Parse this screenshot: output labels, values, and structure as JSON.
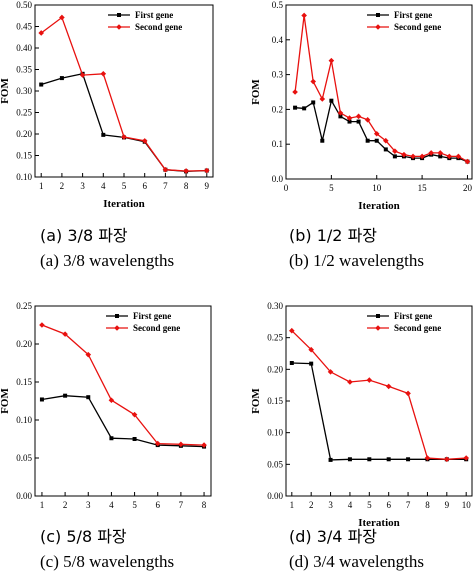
{
  "colors": {
    "series1": "#000000",
    "series2": "#e8110f"
  },
  "chart_data": [
    {
      "type": "line",
      "xlabel": "Iteration",
      "ylabel": "FOM",
      "xlim": [
        0.7,
        9.3
      ],
      "ylim": [
        0.1,
        0.5
      ],
      "xticks": [
        1,
        2,
        3,
        4,
        5,
        6,
        7,
        8,
        9
      ],
      "yticks": [
        0.1,
        0.15,
        0.2,
        0.25,
        0.3,
        0.35,
        0.4,
        0.45,
        0.5
      ],
      "ytick_labels": [
        "0.10",
        "0.15",
        "0.20",
        "0.25",
        "0.30",
        "0.35",
        "0.40",
        "0.45",
        "0.50"
      ],
      "legend_position": "top-right",
      "series": [
        {
          "name": "First gene",
          "x": [
            1,
            2,
            3,
            4,
            5,
            6,
            7,
            8,
            9
          ],
          "values": [
            0.315,
            0.33,
            0.34,
            0.198,
            0.192,
            0.182,
            0.117,
            0.113,
            0.115
          ]
        },
        {
          "name": "Second gene",
          "x": [
            1,
            2,
            3,
            4,
            5,
            6,
            7,
            8,
            9
          ],
          "values": [
            0.435,
            0.471,
            0.337,
            0.34,
            0.193,
            0.184,
            0.117,
            0.114,
            0.115
          ]
        }
      ],
      "caption_line1": "(a)  3/8  파장",
      "caption_line2": "(a)  3/8  wavelengths"
    },
    {
      "type": "line",
      "xlabel": "Iteration",
      "ylabel": "FOM",
      "xlim": [
        0,
        20.5
      ],
      "ylim": [
        0.0,
        0.5
      ],
      "xticks": [
        0,
        5,
        10,
        15,
        20
      ],
      "yticks": [
        0.0,
        0.1,
        0.2,
        0.3,
        0.4,
        0.5
      ],
      "ytick_labels": [
        "0.0",
        "0.1",
        "0.2",
        "0.3",
        "0.4",
        "0.5"
      ],
      "legend_position": "top-right",
      "series": [
        {
          "name": "First gene",
          "x": [
            1,
            2,
            3,
            4,
            5,
            6,
            7,
            8,
            9,
            10,
            11,
            12,
            13,
            14,
            15,
            16,
            17,
            18,
            19,
            20
          ],
          "values": [
            0.205,
            0.203,
            0.22,
            0.11,
            0.225,
            0.18,
            0.165,
            0.165,
            0.11,
            0.11,
            0.085,
            0.065,
            0.065,
            0.06,
            0.06,
            0.07,
            0.065,
            0.06,
            0.06,
            0.05
          ]
        },
        {
          "name": "Second gene",
          "x": [
            1,
            2,
            3,
            4,
            5,
            6,
            7,
            8,
            9,
            10,
            11,
            12,
            13,
            14,
            15,
            16,
            17,
            18,
            19,
            20
          ],
          "values": [
            0.25,
            0.47,
            0.28,
            0.23,
            0.34,
            0.19,
            0.175,
            0.18,
            0.17,
            0.13,
            0.11,
            0.08,
            0.07,
            0.065,
            0.065,
            0.075,
            0.075,
            0.065,
            0.065,
            0.05
          ]
        }
      ],
      "caption_line1": "(b)  1/2  파장",
      "caption_line2": "(b)  1/2  wavelengths"
    },
    {
      "type": "line",
      "xlabel": "",
      "ylabel": "FOM",
      "xlim": [
        0.7,
        8.3
      ],
      "ylim": [
        0.0,
        0.25
      ],
      "xticks": [
        1,
        2,
        3,
        4,
        5,
        6,
        7,
        8
      ],
      "yticks": [
        0.0,
        0.05,
        0.1,
        0.15,
        0.2,
        0.25
      ],
      "ytick_labels": [
        "0.00",
        "0.05",
        "0.10",
        "0.15",
        "0.20",
        "0.25"
      ],
      "legend_position": "top-right",
      "series": [
        {
          "name": "First gene",
          "x": [
            1,
            2,
            3,
            4,
            5,
            6,
            7,
            8
          ],
          "values": [
            0.127,
            0.132,
            0.13,
            0.076,
            0.075,
            0.067,
            0.066,
            0.065
          ]
        },
        {
          "name": "Second gene",
          "x": [
            1,
            2,
            3,
            4,
            5,
            6,
            7,
            8
          ],
          "values": [
            0.225,
            0.213,
            0.186,
            0.126,
            0.107,
            0.069,
            0.068,
            0.067
          ]
        }
      ],
      "caption_line1": "(c)  5/8  파장",
      "caption_line2": "(c)  5/8  wavelengths"
    },
    {
      "type": "line",
      "xlabel": "Iteration",
      "ylabel": "FOM",
      "xlim": [
        0.7,
        10.3
      ],
      "ylim": [
        0.0,
        0.3
      ],
      "xticks": [
        1,
        2,
        3,
        4,
        5,
        6,
        7,
        8,
        9,
        10
      ],
      "yticks": [
        0.0,
        0.05,
        0.1,
        0.15,
        0.2,
        0.25,
        0.3
      ],
      "ytick_labels": [
        "0.00",
        "0.05",
        "0.10",
        "0.15",
        "0.20",
        "0.25",
        "0.30"
      ],
      "legend_position": "top-right",
      "series": [
        {
          "name": "First gene",
          "x": [
            1,
            2,
            3,
            4,
            5,
            6,
            7,
            8,
            9,
            10
          ],
          "values": [
            0.21,
            0.209,
            0.057,
            0.058,
            0.058,
            0.058,
            0.058,
            0.058,
            0.058,
            0.058
          ]
        },
        {
          "name": "Second gene",
          "x": [
            1,
            2,
            3,
            4,
            5,
            6,
            7,
            8,
            9,
            10
          ],
          "values": [
            0.261,
            0.231,
            0.196,
            0.18,
            0.183,
            0.173,
            0.162,
            0.06,
            0.058,
            0.06
          ]
        }
      ],
      "caption_line1": "(d)  3/4  파장",
      "caption_line2": "(d)  3/4  wavelengths"
    }
  ]
}
